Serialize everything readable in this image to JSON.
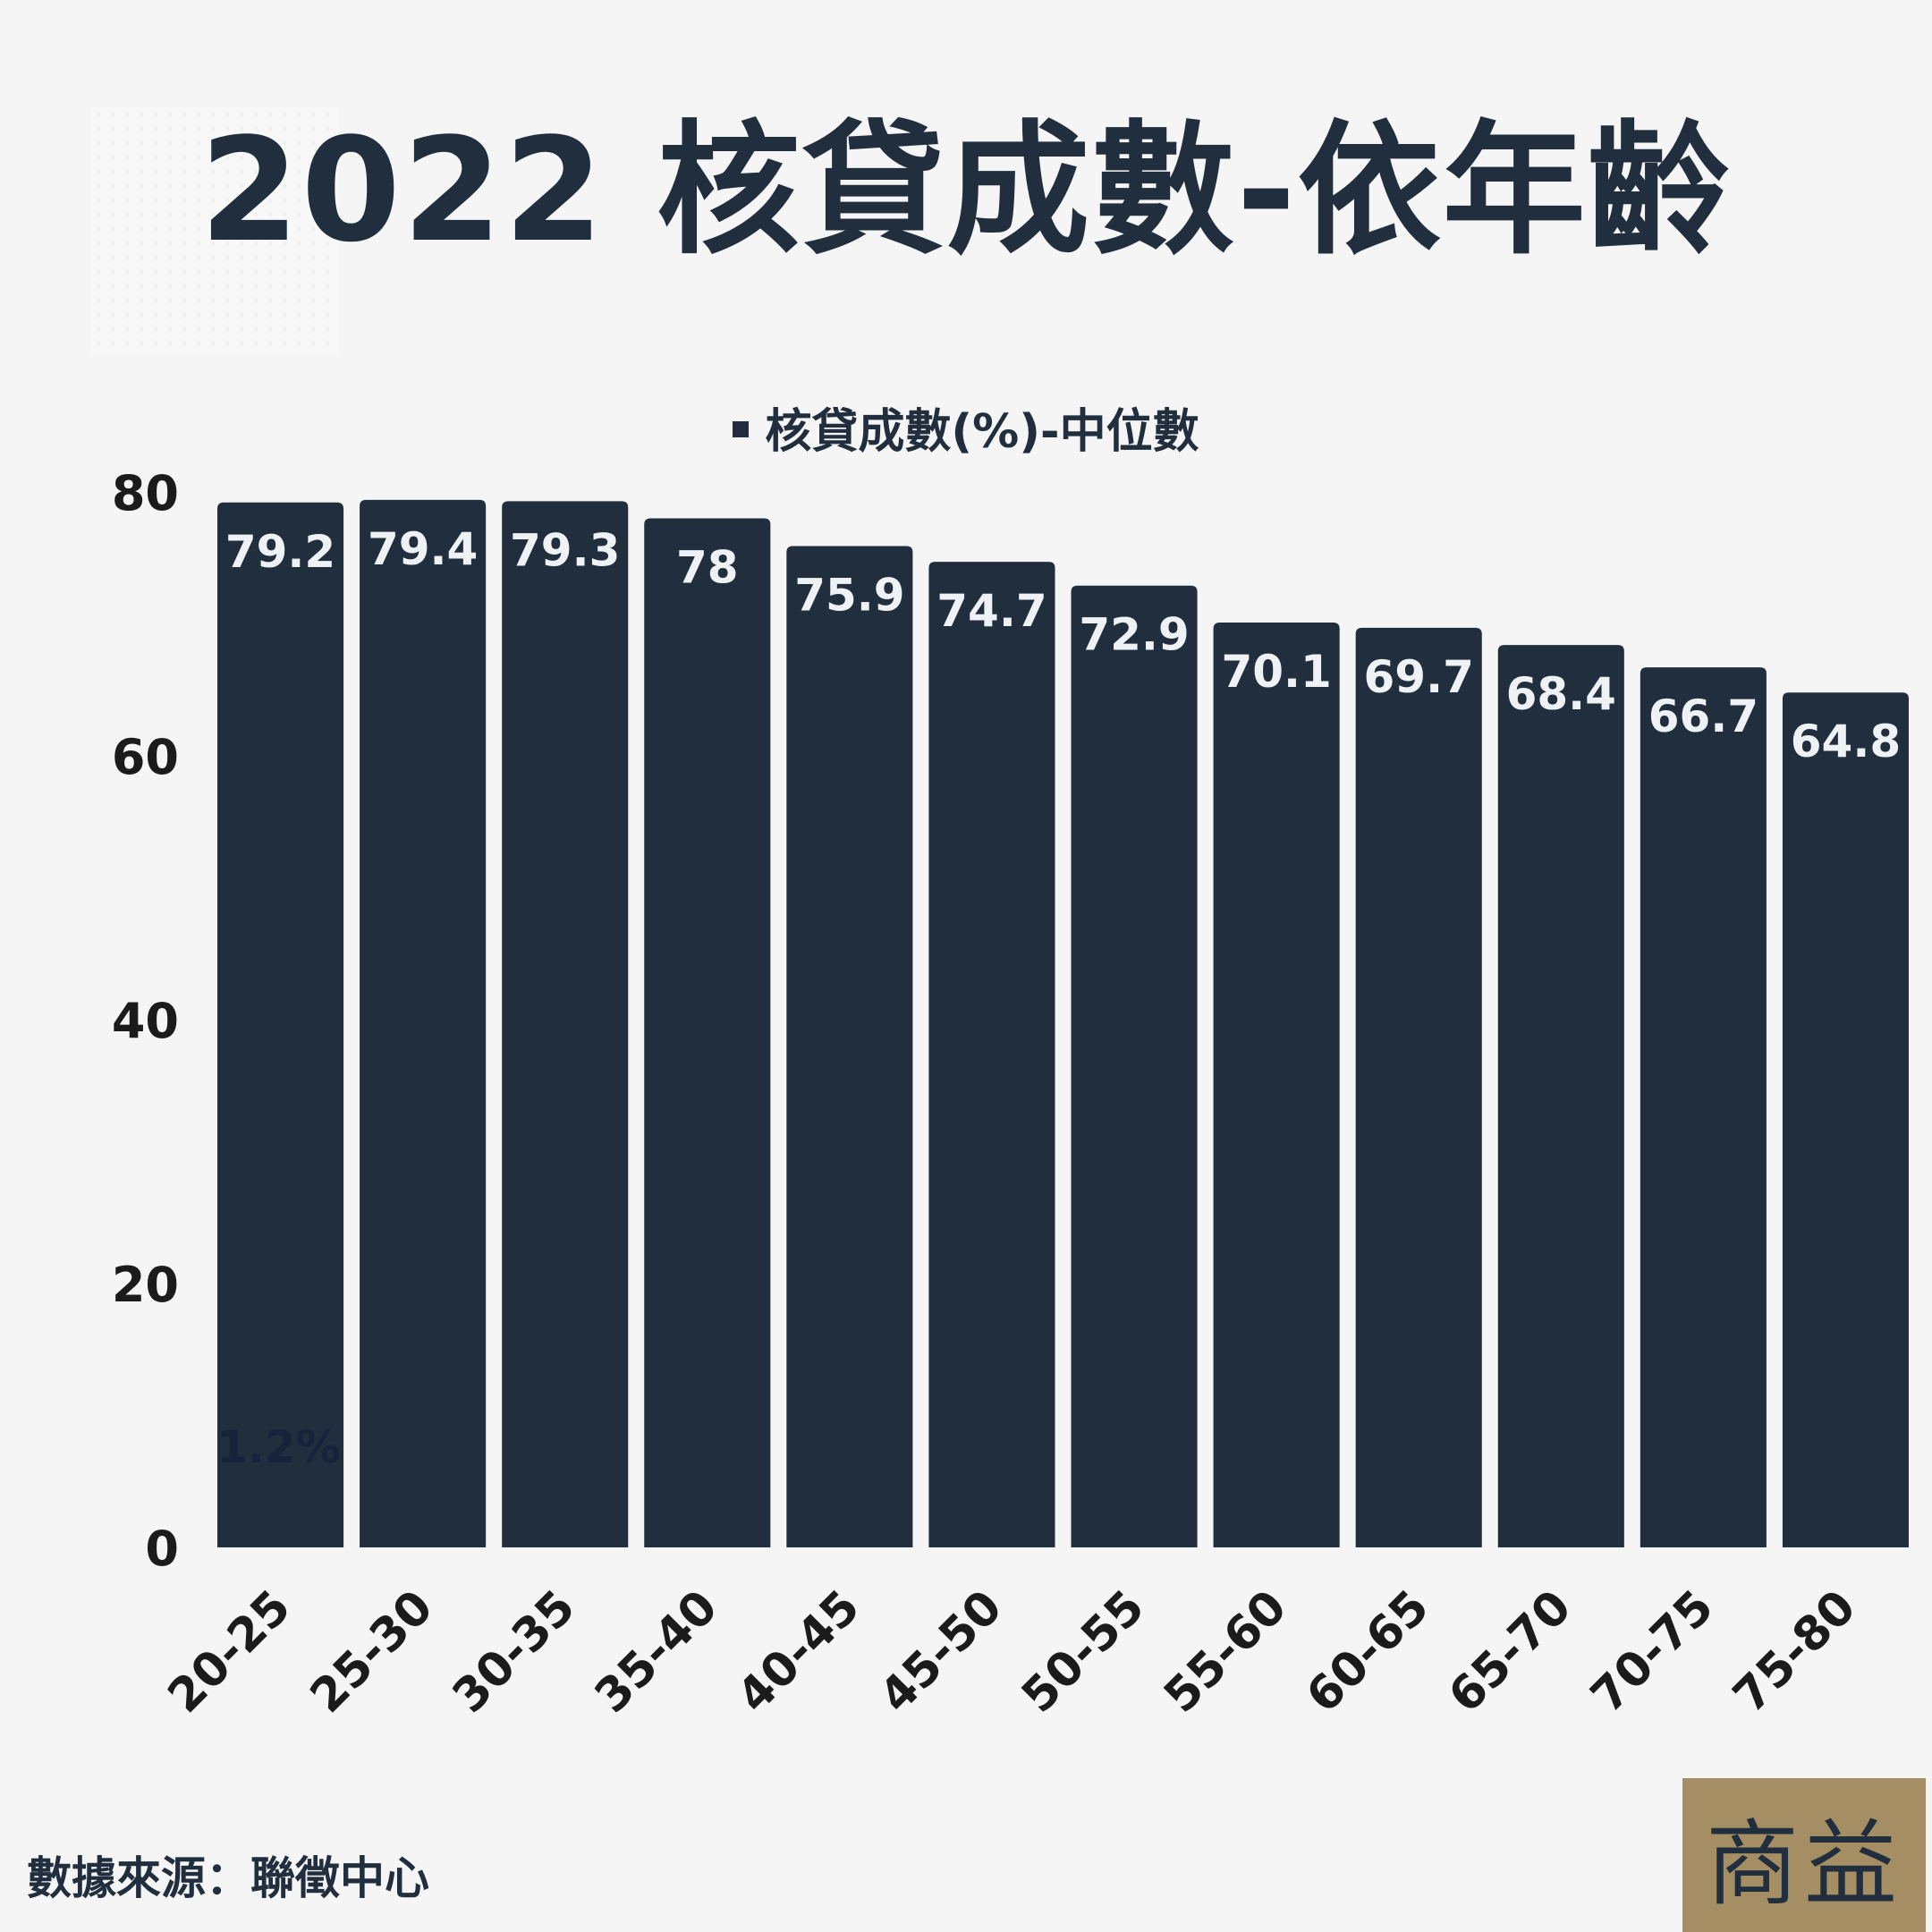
{
  "title": "2022 核貸成數-依年齡",
  "legend_label": "核貸成數(%)-中位數",
  "source_label": "數據來源：聯徵中心",
  "logo_text": "商益",
  "colors": {
    "bar": "#202e3d",
    "bar_label": "#eef2f5",
    "background": "#f5f5f5",
    "logo_bg": "#a58e64"
  },
  "chart_data": {
    "type": "bar",
    "categories": [
      "20-25",
      "25-30",
      "30-35",
      "35-40",
      "40-45",
      "45-50",
      "50-55",
      "55-60",
      "60-65",
      "65-70",
      "70-75",
      "75-80"
    ],
    "series": [
      {
        "name": "核貸成數(%)-中位數",
        "values": [
          79.2,
          79.4,
          79.3,
          78,
          75.9,
          74.7,
          72.9,
          70.1,
          69.7,
          68.4,
          66.7,
          64.8
        ]
      }
    ],
    "value_labels": [
      "79.2",
      "79.4",
      "79.3",
      "78",
      "75.9",
      "74.7",
      "72.9",
      "70.1",
      "69.7",
      "68.4",
      "66.7",
      "64.8"
    ],
    "annotation": "1.2%",
    "yticks": [
      0,
      20,
      40,
      60,
      80
    ],
    "ylim": [
      0,
      80
    ],
    "grid": false,
    "legend_position": "top-center"
  }
}
